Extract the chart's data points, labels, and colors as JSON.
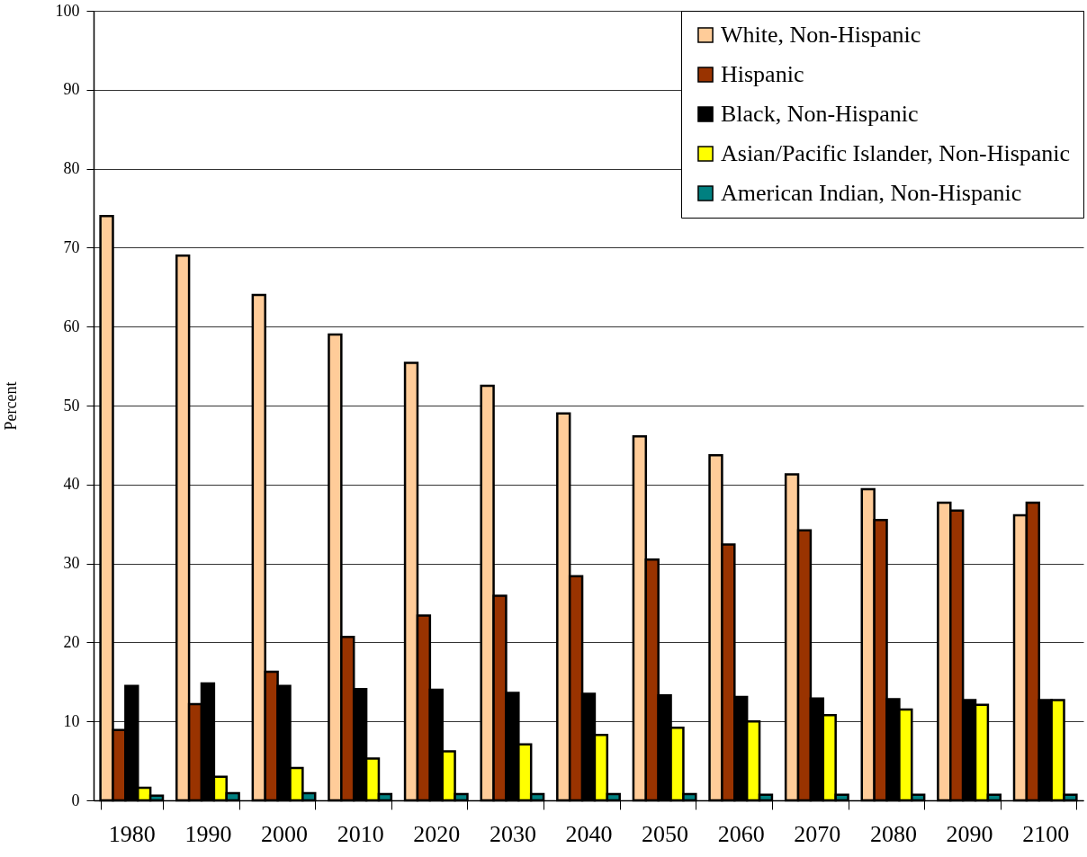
{
  "chart_data": {
    "type": "bar",
    "ylabel": "Percent",
    "categories": [
      "1980",
      "1990",
      "2000",
      "2010",
      "2020",
      "2030",
      "2040",
      "2050",
      "2060",
      "2070",
      "2080",
      "2090",
      "2100"
    ],
    "series": [
      {
        "name": "White, Non-Hispanic",
        "color": "#ffcc99",
        "values": [
          74,
          69,
          64,
          59,
          55.4,
          52.5,
          49,
          46.1,
          43.7,
          41.3,
          39.4,
          37.7,
          36.1
        ]
      },
      {
        "name": "Hispanic",
        "color": "#993300",
        "values": [
          8.9,
          12.2,
          16.3,
          20.7,
          23.4,
          25.9,
          28.4,
          30.5,
          32.4,
          34.2,
          35.5,
          36.7,
          37.7
        ]
      },
      {
        "name": "Black, Non-Hispanic",
        "color": "#000000",
        "values": [
          14.5,
          14.8,
          14.5,
          14.1,
          14.0,
          13.6,
          13.5,
          13.3,
          13.1,
          12.9,
          12.8,
          12.7,
          12.7
        ]
      },
      {
        "name": "Asian/Pacific Islander, Non-Hispanic",
        "color": "#ffff00",
        "values": [
          1.6,
          3.0,
          4.1,
          5.3,
          6.2,
          7.1,
          8.3,
          9.2,
          10.0,
          10.8,
          11.5,
          12.1,
          12.7
        ]
      },
      {
        "name": "American Indian, Non-Hispanic",
        "color": "#008080",
        "values": [
          0.6,
          0.9,
          0.9,
          0.8,
          0.8,
          0.8,
          0.8,
          0.8,
          0.7,
          0.7,
          0.7,
          0.7,
          0.7
        ]
      }
    ],
    "ylim": [
      0,
      100
    ],
    "yticks": [
      0,
      10,
      20,
      30,
      40,
      50,
      60,
      70,
      80,
      90,
      100
    ],
    "grid": "y",
    "legend": "top right"
  }
}
